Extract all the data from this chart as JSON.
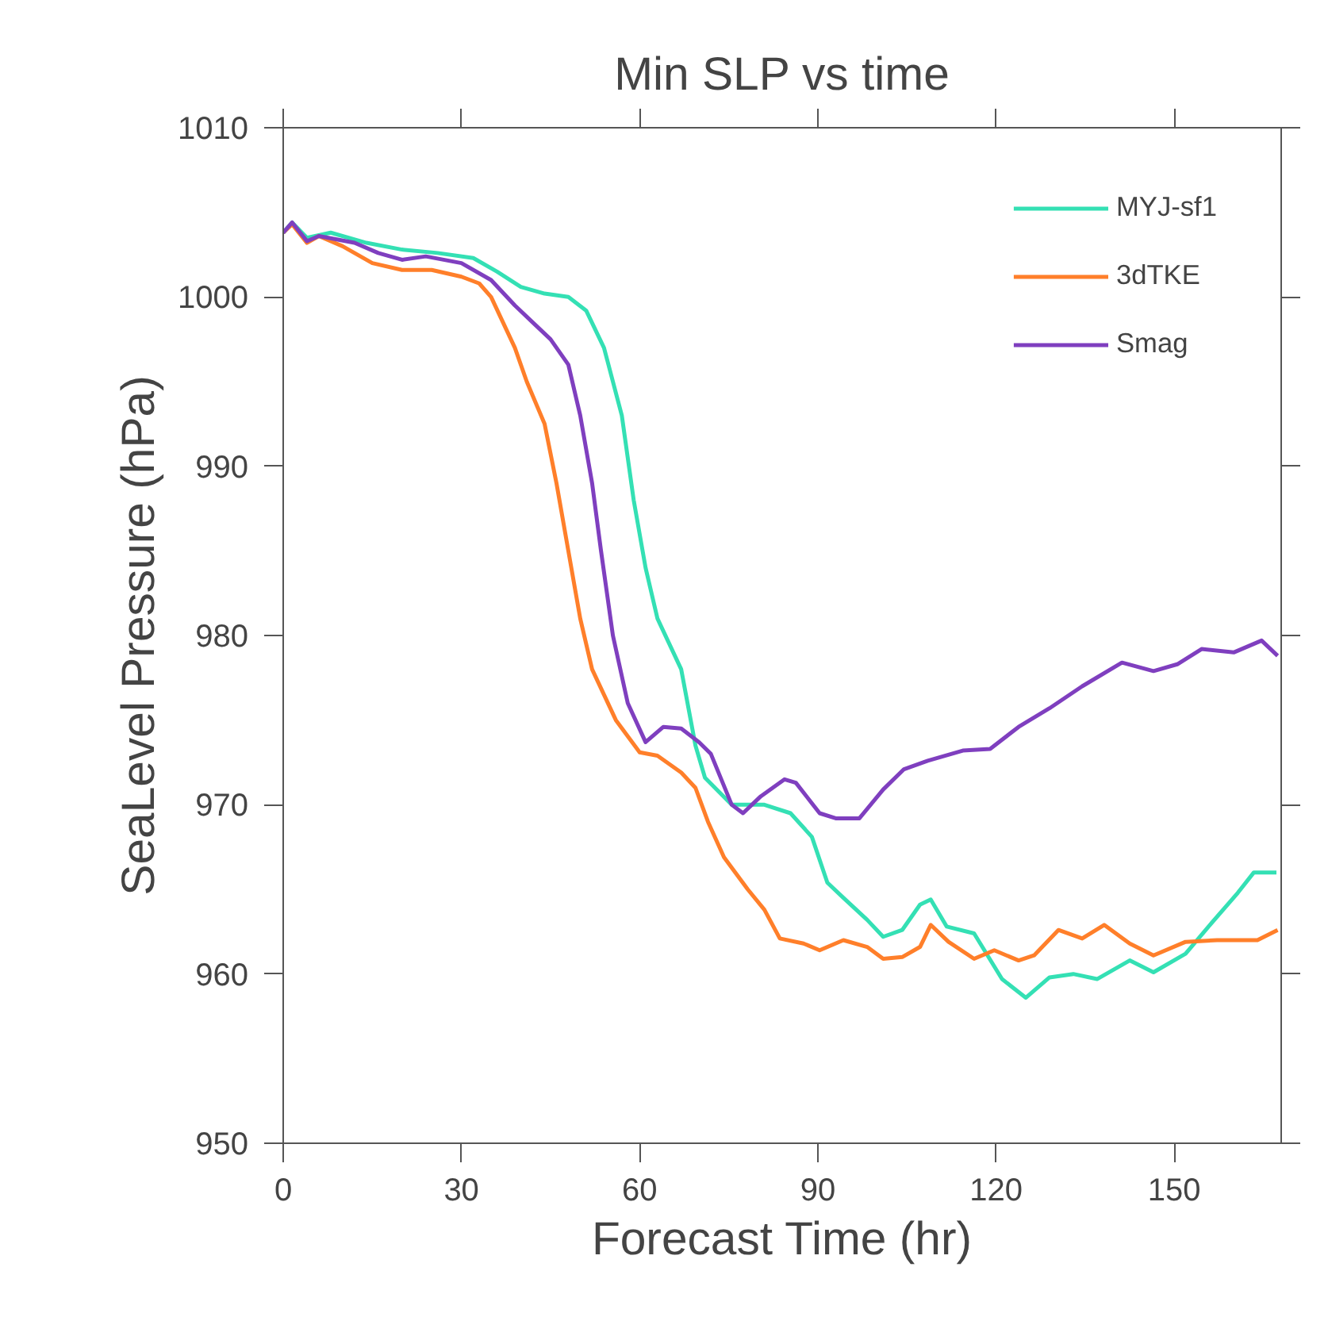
{
  "chart_data": {
    "type": "line",
    "title": "Min SLP vs time",
    "xlabel": "Forecast Time (hr)",
    "ylabel": "SeaLevel Pressure (hPa)",
    "xlim": [
      0,
      168
    ],
    "xticks": [
      0,
      30,
      60,
      90,
      120,
      150
    ],
    "ylim": [
      950,
      1010
    ],
    "yticks": [
      950,
      960,
      970,
      980,
      990,
      1000,
      1010
    ],
    "grid": false,
    "legend": "top right",
    "series": [
      {
        "name": "MYJ-sf1",
        "color": "#34e0b4",
        "x": [
          0,
          1.5,
          4,
          8,
          14,
          20,
          26,
          32,
          36,
          40,
          44,
          48,
          51,
          54,
          57,
          59,
          61,
          63,
          65,
          67,
          69.4,
          71,
          75.5,
          81,
          85.4,
          89,
          91.6,
          94.3,
          98.3,
          101,
          104.2,
          107.2,
          109,
          111.7,
          116.3,
          121,
          125,
          129,
          133,
          137,
          142.5,
          146.5,
          151.9,
          156,
          160.7,
          163.4,
          167.2
        ],
        "values": [
          1003.8,
          1004.4,
          1003.5,
          1003.8,
          1003.2,
          1002.8,
          1002.6,
          1002.3,
          1001.5,
          1000.6,
          1000.2,
          1000.0,
          999.2,
          997,
          993,
          988,
          984,
          981,
          979.5,
          978,
          973.5,
          971.6,
          970,
          970,
          969.5,
          968.1,
          965.4,
          964.5,
          963.2,
          962.2,
          962.6,
          964.1,
          964.4,
          962.8,
          962.4,
          959.7,
          958.6,
          959.8,
          960,
          959.7,
          960.8,
          960.1,
          961.2,
          962.9,
          964.8,
          966,
          966
        ]
      },
      {
        "name": "3dTKE",
        "color": "#ff7f2a",
        "x": [
          0,
          1.5,
          4,
          6,
          10,
          15,
          20,
          25,
          30,
          33,
          35,
          37,
          39,
          41,
          44,
          46,
          48,
          50,
          52,
          54,
          56,
          60,
          63,
          67,
          69.4,
          71.5,
          74.2,
          78.2,
          81,
          83.6,
          87.6,
          90.3,
          94.3,
          98.3,
          101,
          104.2,
          107.2,
          109,
          112,
          116.3,
          119.7,
          123.8,
          126.4,
          130.5,
          134.5,
          138.2,
          142.5,
          146.5,
          151.9,
          157.2,
          164,
          167.4
        ],
        "values": [
          1003.8,
          1004.3,
          1003.2,
          1003.6,
          1003,
          1002,
          1001.6,
          1001.6,
          1001.2,
          1000.8,
          1000,
          998.5,
          997,
          995,
          992.5,
          989,
          985,
          981,
          978,
          976.5,
          975,
          973.1,
          972.9,
          971.9,
          971,
          969,
          966.9,
          965,
          963.8,
          962.1,
          961.8,
          961.4,
          962,
          961.6,
          960.9,
          961,
          961.6,
          962.9,
          961.9,
          960.9,
          961.4,
          960.8,
          961.1,
          962.6,
          962.1,
          962.9,
          961.8,
          961.1,
          961.9,
          962,
          962,
          962.6
        ]
      },
      {
        "name": "Smag",
        "color": "#7f3fbf",
        "x": [
          0,
          1.5,
          4,
          6,
          12,
          16,
          20,
          24,
          30,
          35,
          39,
          42,
          45,
          48,
          50,
          52,
          53.5,
          55.5,
          58,
          61,
          64,
          67,
          70,
          72,
          75.5,
          77.4,
          80.4,
          84.4,
          86.3,
          90.3,
          93,
          97,
          101,
          104.5,
          108.5,
          114.4,
          119,
          123.8,
          129,
          134.5,
          141.2,
          146.5,
          150.5,
          154.6,
          160,
          164.7,
          167.4
        ],
        "values": [
          1003.8,
          1004.4,
          1003.3,
          1003.6,
          1003.2,
          1002.6,
          1002.2,
          1002.4,
          1002,
          1001,
          999.5,
          998.5,
          997.5,
          996,
          993,
          989,
          985,
          980,
          976,
          973.7,
          974.6,
          974.5,
          973.7,
          973,
          970,
          969.5,
          970.5,
          971.5,
          971.3,
          969.5,
          969.2,
          969.2,
          970.9,
          972.1,
          972.6,
          973.2,
          973.3,
          974.6,
          975.7,
          977,
          978.4,
          977.9,
          978.3,
          979.2,
          979,
          979.7,
          978.8
        ]
      }
    ]
  }
}
